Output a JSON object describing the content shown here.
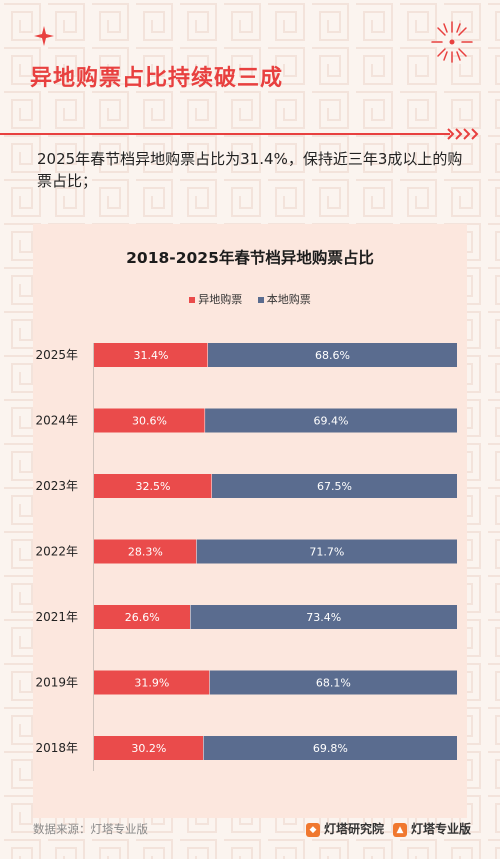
{
  "page": {
    "title": "异地购票占比持续破三成",
    "subtitle": "2025年春节档异地购票占比为31.4%，保持近三年3成以上的购票占比；"
  },
  "colors": {
    "accent": "#e8403f",
    "series_out": "#ea4b4b",
    "series_local": "#5a6c8f",
    "background": "#fbf4ef",
    "card": "#fce7de"
  },
  "chart_data": {
    "type": "bar",
    "orientation": "horizontal",
    "stacked": "percent",
    "title": "2018-2025年春节档异地购票占比",
    "categories": [
      "2025年",
      "2024年",
      "2023年",
      "2022年",
      "2021年",
      "2019年",
      "2018年"
    ],
    "series": [
      {
        "name": "异地购票",
        "color": "#ea4b4b",
        "values": [
          31.4,
          30.6,
          32.5,
          28.3,
          26.6,
          31.9,
          30.2
        ],
        "labels": [
          "31.4%",
          "30.6%",
          "32.5%",
          "28.3%",
          "26.6%",
          "31.9%",
          "30.2%"
        ]
      },
      {
        "name": "本地购票",
        "color": "#5a6c8f",
        "values": [
          68.6,
          69.4,
          67.5,
          71.7,
          73.4,
          68.1,
          69.8
        ],
        "labels": [
          "68.6%",
          "69.4%",
          "67.5%",
          "71.7%",
          "73.4%",
          "68.1%",
          "69.8%"
        ]
      }
    ],
    "xlim": [
      0,
      100
    ],
    "legend_position": "top-center",
    "grid": false
  },
  "footer": {
    "source": "数据来源：灯塔专业版",
    "brand_1": "灯塔研究院",
    "brand_2": "灯塔专业版",
    "brand_1_icon": "lighthouse-logo-icon",
    "brand_2_icon": "lighthouse-app-icon"
  }
}
